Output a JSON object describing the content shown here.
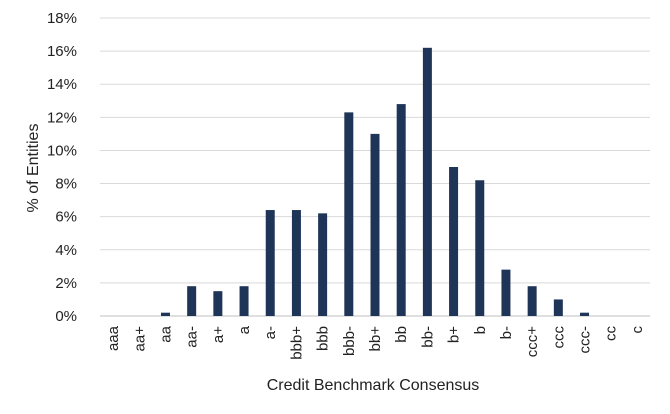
{
  "chart_data": {
    "type": "bar",
    "title": "",
    "xlabel": "Credit Benchmark Consensus",
    "ylabel": "% of Entities",
    "categories": [
      "aaa",
      "aa+",
      "aa",
      "aa-",
      "a+",
      "a",
      "a-",
      "bbb+",
      "bbb",
      "bbb-",
      "bb+",
      "bb",
      "bb-",
      "b+",
      "b",
      "b-",
      "ccc+",
      "ccc",
      "ccc-",
      "cc",
      "c"
    ],
    "values": [
      0,
      0,
      0.2,
      1.8,
      1.5,
      1.8,
      6.4,
      6.4,
      6.2,
      12.3,
      11.0,
      12.8,
      16.2,
      9.0,
      8.2,
      2.8,
      1.8,
      1.0,
      0.2,
      0,
      0
    ],
    "ylim": [
      0,
      18
    ],
    "yticks": [
      "0%",
      "2%",
      "4%",
      "6%",
      "8%",
      "10%",
      "12%",
      "14%",
      "16%",
      "18%"
    ],
    "ytick_values": [
      0,
      2,
      4,
      6,
      8,
      10,
      12,
      14,
      16,
      18
    ],
    "grid": true,
    "legend": "none",
    "bar_color": "#1f3558"
  }
}
